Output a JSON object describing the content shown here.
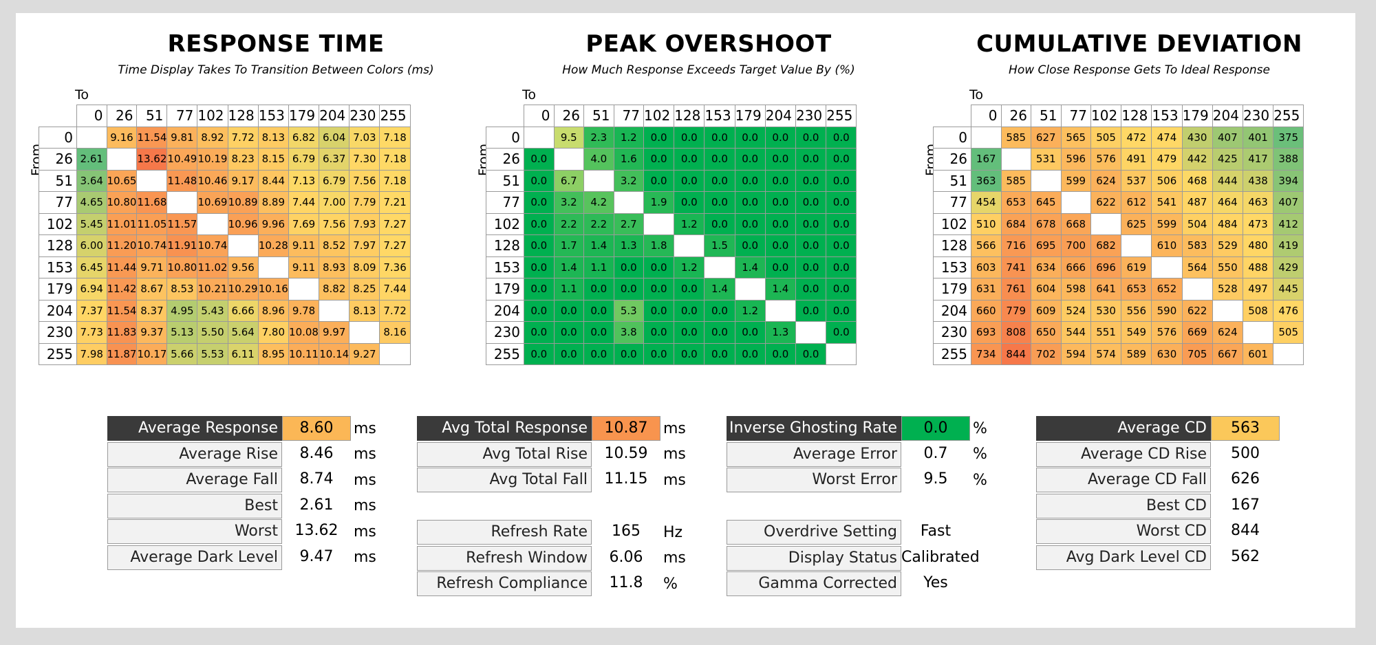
{
  "chart_data": [
    {
      "type": "heatmap",
      "title": "RESPONSE TIME",
      "subtitle": "Time Display Takes To Transition Between Colors (ms)",
      "xlabel": "To",
      "ylabel": "From",
      "x": [
        "0",
        "26",
        "51",
        "77",
        "102",
        "128",
        "153",
        "179",
        "204",
        "230",
        "255"
      ],
      "y": [
        "0",
        "26",
        "51",
        "77",
        "102",
        "128",
        "153",
        "179",
        "204",
        "230",
        "255"
      ],
      "values": [
        [
          null,
          "9.16",
          "11.54",
          "9.81",
          "8.92",
          "7.72",
          "8.13",
          "6.82",
          "6.04",
          "7.03",
          "7.18"
        ],
        [
          "2.61",
          null,
          "13.62",
          "10.49",
          "10.19",
          "8.23",
          "8.15",
          "6.79",
          "6.37",
          "7.30",
          "7.18"
        ],
        [
          "3.64",
          "10.65",
          null,
          "11.48",
          "10.46",
          "9.17",
          "8.44",
          "7.13",
          "6.79",
          "7.56",
          "7.18"
        ],
        [
          "4.65",
          "10.80",
          "11.68",
          null,
          "10.69",
          "10.89",
          "8.89",
          "7.44",
          "7.00",
          "7.79",
          "7.21"
        ],
        [
          "5.45",
          "11.01",
          "11.05",
          "11.57",
          null,
          "10.96",
          "9.96",
          "7.69",
          "7.56",
          "7.93",
          "7.27"
        ],
        [
          "6.00",
          "11.20",
          "10.74",
          "11.91",
          "10.74",
          null,
          "10.28",
          "9.11",
          "8.52",
          "7.97",
          "7.27"
        ],
        [
          "6.45",
          "11.44",
          "9.71",
          "10.80",
          "11.02",
          "9.56",
          null,
          "9.11",
          "8.93",
          "8.09",
          "7.36"
        ],
        [
          "6.94",
          "11.42",
          "8.67",
          "8.53",
          "10.21",
          "10.29",
          "10.16",
          null,
          "8.82",
          "8.25",
          "7.44"
        ],
        [
          "7.37",
          "11.54",
          "8.37",
          "4.95",
          "5.43",
          "6.66",
          "8.96",
          "9.78",
          null,
          "8.13",
          "7.72"
        ],
        [
          "7.73",
          "11.83",
          "9.37",
          "5.13",
          "5.50",
          "5.64",
          "7.80",
          "10.08",
          "9.97",
          null,
          "8.16"
        ],
        [
          "7.98",
          "11.87",
          "10.17",
          "5.66",
          "5.53",
          "6.11",
          "8.95",
          "10.11",
          "10.14",
          "9.27",
          null
        ]
      ]
    },
    {
      "type": "heatmap",
      "title": "PEAK OVERSHOOT",
      "subtitle": "How Much Response Exceeds Target Value By (%)",
      "xlabel": "To",
      "ylabel": "From",
      "x": [
        "0",
        "26",
        "51",
        "77",
        "102",
        "128",
        "153",
        "179",
        "204",
        "230",
        "255"
      ],
      "y": [
        "0",
        "26",
        "51",
        "77",
        "102",
        "128",
        "153",
        "179",
        "204",
        "230",
        "255"
      ],
      "values": [
        [
          null,
          "9.5",
          "2.3",
          "1.2",
          "0.0",
          "0.0",
          "0.0",
          "0.0",
          "0.0",
          "0.0",
          "0.0"
        ],
        [
          "0.0",
          null,
          "4.0",
          "1.6",
          "0.0",
          "0.0",
          "0.0",
          "0.0",
          "0.0",
          "0.0",
          "0.0"
        ],
        [
          "0.0",
          "6.7",
          null,
          "3.2",
          "0.0",
          "0.0",
          "0.0",
          "0.0",
          "0.0",
          "0.0",
          "0.0"
        ],
        [
          "0.0",
          "3.2",
          "4.2",
          null,
          "1.9",
          "0.0",
          "0.0",
          "0.0",
          "0.0",
          "0.0",
          "0.0"
        ],
        [
          "0.0",
          "2.2",
          "2.2",
          "2.7",
          null,
          "1.2",
          "0.0",
          "0.0",
          "0.0",
          "0.0",
          "0.0"
        ],
        [
          "0.0",
          "1.7",
          "1.4",
          "1.3",
          "1.8",
          null,
          "1.5",
          "0.0",
          "0.0",
          "0.0",
          "0.0"
        ],
        [
          "0.0",
          "1.4",
          "1.1",
          "0.0",
          "0.0",
          "1.2",
          null,
          "1.4",
          "0.0",
          "0.0",
          "0.0"
        ],
        [
          "0.0",
          "1.1",
          "0.0",
          "0.0",
          "0.0",
          "0.0",
          "1.4",
          null,
          "1.4",
          "0.0",
          "0.0"
        ],
        [
          "0.0",
          "0.0",
          "0.0",
          "5.3",
          "0.0",
          "0.0",
          "0.0",
          "1.2",
          null,
          "0.0",
          "0.0"
        ],
        [
          "0.0",
          "0.0",
          "0.0",
          "3.8",
          "0.0",
          "0.0",
          "0.0",
          "0.0",
          "1.3",
          null,
          "0.0"
        ],
        [
          "0.0",
          "0.0",
          "0.0",
          "0.0",
          "0.0",
          "0.0",
          "0.0",
          "0.0",
          "0.0",
          "0.0",
          null
        ]
      ]
    },
    {
      "type": "heatmap",
      "title": "CUMULATIVE DEVIATION",
      "subtitle": "How Close Response Gets To Ideal Response",
      "xlabel": "To",
      "ylabel": "From",
      "x": [
        "0",
        "26",
        "51",
        "77",
        "102",
        "128",
        "153",
        "179",
        "204",
        "230",
        "255"
      ],
      "y": [
        "0",
        "26",
        "51",
        "77",
        "102",
        "128",
        "153",
        "179",
        "204",
        "230",
        "255"
      ],
      "values": [
        [
          null,
          "585",
          "627",
          "565",
          "505",
          "472",
          "474",
          "430",
          "407",
          "401",
          "375"
        ],
        [
          "167",
          null,
          "531",
          "596",
          "576",
          "491",
          "479",
          "442",
          "425",
          "417",
          "388"
        ],
        [
          "363",
          "585",
          null,
          "599",
          "624",
          "537",
          "506",
          "468",
          "444",
          "438",
          "394"
        ],
        [
          "454",
          "653",
          "645",
          null,
          "622",
          "612",
          "541",
          "487",
          "464",
          "463",
          "407"
        ],
        [
          "510",
          "684",
          "678",
          "668",
          null,
          "625",
          "599",
          "504",
          "484",
          "473",
          "412"
        ],
        [
          "566",
          "716",
          "695",
          "700",
          "682",
          null,
          "610",
          "583",
          "529",
          "480",
          "419"
        ],
        [
          "603",
          "741",
          "634",
          "666",
          "696",
          "619",
          null,
          "564",
          "550",
          "488",
          "429"
        ],
        [
          "631",
          "761",
          "604",
          "598",
          "641",
          "653",
          "652",
          null,
          "528",
          "497",
          "445"
        ],
        [
          "660",
          "779",
          "609",
          "524",
          "530",
          "556",
          "590",
          "622",
          null,
          "508",
          "476"
        ],
        [
          "693",
          "808",
          "650",
          "544",
          "551",
          "549",
          "576",
          "669",
          "624",
          null,
          "505"
        ],
        [
          "734",
          "844",
          "702",
          "594",
          "574",
          "589",
          "630",
          "705",
          "667",
          "601",
          null
        ]
      ]
    }
  ],
  "stats": {
    "response": [
      {
        "label": "Average Response",
        "value": "8.60",
        "unit": "ms",
        "head": true,
        "color": "#fbb756"
      },
      {
        "label": "Average Rise",
        "value": "8.46",
        "unit": "ms"
      },
      {
        "label": "Average Fall",
        "value": "8.74",
        "unit": "ms"
      },
      {
        "label": "Best",
        "value": "2.61",
        "unit": "ms"
      },
      {
        "label": "Worst",
        "value": "13.62",
        "unit": "ms"
      },
      {
        "label": "Average Dark Level",
        "value": "9.47",
        "unit": "ms"
      }
    ],
    "total": [
      {
        "label": "Avg Total Response",
        "value": "10.87",
        "unit": "ms",
        "head": true,
        "color": "#f8944e"
      },
      {
        "label": "Avg Total Rise",
        "value": "10.59",
        "unit": "ms"
      },
      {
        "label": "Avg Total Fall",
        "value": "11.15",
        "unit": "ms"
      }
    ],
    "refresh": [
      {
        "label": "Refresh Rate",
        "value": "165",
        "unit": "Hz"
      },
      {
        "label": "Refresh Window",
        "value": "6.06",
        "unit": "ms"
      },
      {
        "label": "Refresh Compliance",
        "value": "11.8",
        "unit": "%"
      }
    ],
    "overshoot": [
      {
        "label": "Inverse Ghosting Rate",
        "value": "0.0",
        "unit": "%",
        "head": true,
        "color": "#00b050"
      },
      {
        "label": "Average Error",
        "value": "0.7",
        "unit": "%"
      },
      {
        "label": "Worst Error",
        "value": "9.5",
        "unit": "%"
      }
    ],
    "settings": [
      {
        "label": "Overdrive Setting",
        "value": "Fast",
        "unit": ""
      },
      {
        "label": "Display Status",
        "value": "Calibrated",
        "unit": ""
      },
      {
        "label": "Gamma Corrected",
        "value": "Yes",
        "unit": ""
      }
    ],
    "cd": [
      {
        "label": "Average CD",
        "value": "563",
        "unit": "",
        "head": true,
        "color": "#fbc85a"
      },
      {
        "label": "Average CD Rise",
        "value": "500",
        "unit": ""
      },
      {
        "label": "Average CD Fall",
        "value": "626",
        "unit": ""
      },
      {
        "label": "Best CD",
        "value": "167",
        "unit": ""
      },
      {
        "label": "Worst CD",
        "value": "844",
        "unit": ""
      },
      {
        "label": "Avg Dark Level CD",
        "value": "562",
        "unit": ""
      }
    ]
  }
}
